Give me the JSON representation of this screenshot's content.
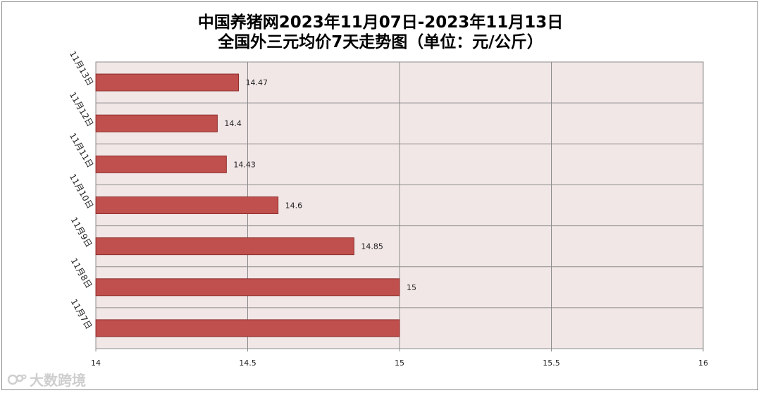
{
  "chart_data": {
    "type": "bar",
    "orientation": "horizontal",
    "title": "中国养猪网2023年11月07日-2023年11月13日",
    "subtitle": "全国外三元均价7天走势图（单位：元/公斤）",
    "categories": [
      "11月7日",
      "11月8日",
      "11月9日",
      "11月10日",
      "11月11日",
      "11月12日",
      "11月13日"
    ],
    "values": [
      15,
      15,
      14.85,
      14.6,
      14.43,
      14.4,
      14.47
    ],
    "data_labels": [
      "",
      "15",
      "14.85",
      "14.6",
      "14.43",
      "14.4",
      "14.47"
    ],
    "xlim": [
      14,
      16
    ],
    "xticks": [
      "14",
      "14.5",
      "15",
      "15.5",
      "16"
    ],
    "xtick_values": [
      14,
      14.5,
      15,
      15.5,
      16
    ],
    "grid": true,
    "legend": "none",
    "bar_color": "#c0504d",
    "bar_edge_color": "#8c2d2b",
    "plot_background": "#f2e7e7"
  },
  "watermark": {
    "text": "大数跨境"
  }
}
